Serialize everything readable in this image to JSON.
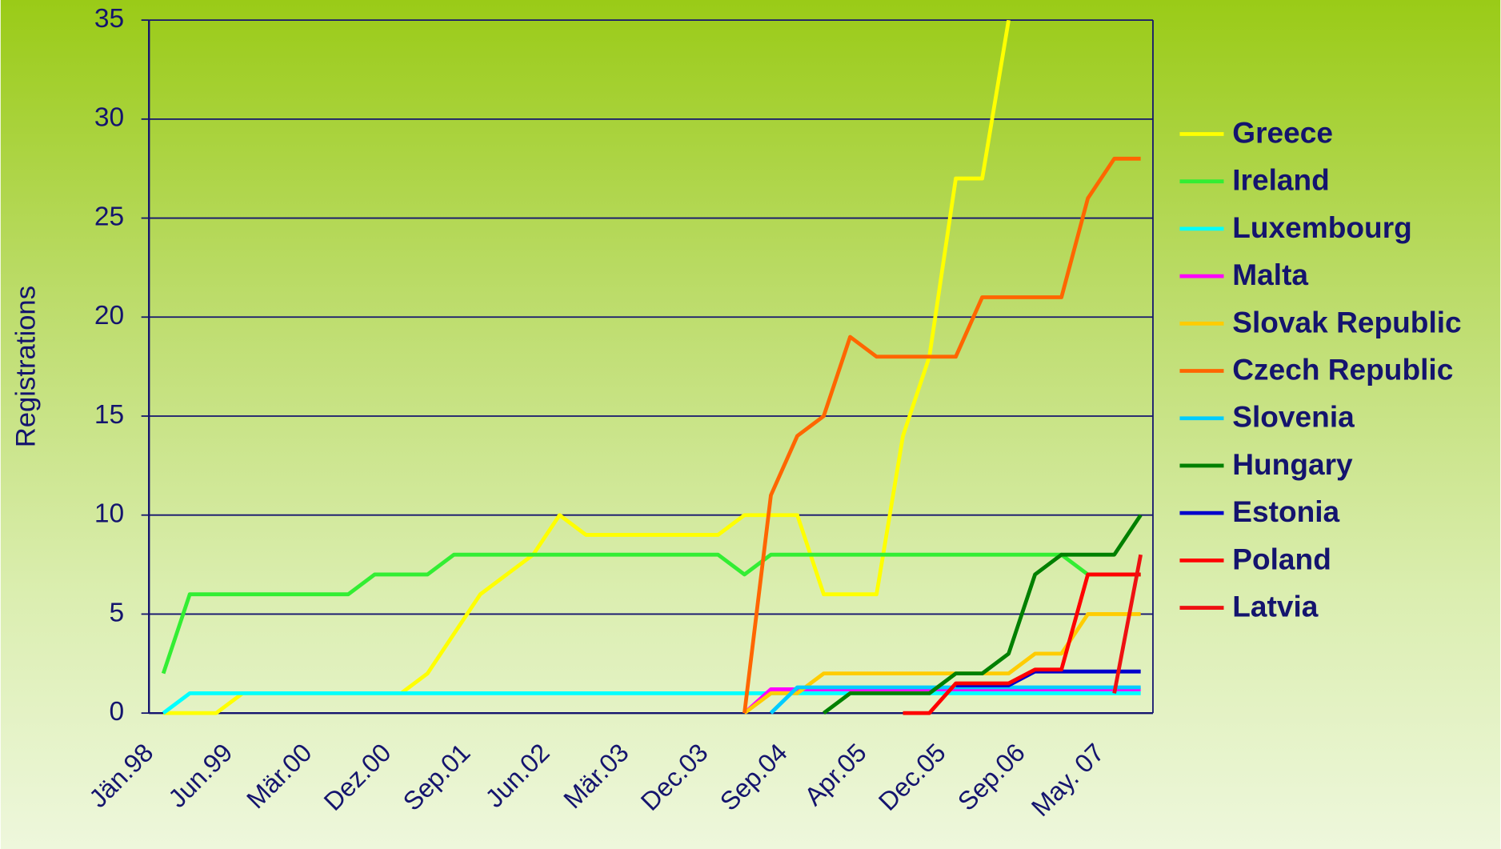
{
  "chart_data": {
    "type": "line",
    "y_label": "Registrations",
    "categories": [
      "Jän.98",
      null,
      null,
      "Jun.99",
      null,
      null,
      "Mär.00",
      null,
      null,
      "Dez.00",
      null,
      null,
      "Sep.01",
      null,
      null,
      "Jun.02",
      null,
      null,
      "Mär.03",
      null,
      null,
      "Dec.03",
      null,
      null,
      "Sep.04",
      null,
      null,
      "Apr.05",
      null,
      null,
      "Dec.05",
      null,
      null,
      "Sep.06",
      null,
      null,
      "May. 07",
      null
    ],
    "ylim": [
      0,
      35
    ],
    "yticks": [
      0,
      5,
      10,
      15,
      20,
      25,
      30,
      35
    ],
    "grid": true,
    "series": [
      {
        "name": "Greece",
        "color": "#ffff00",
        "values": [
          0,
          0,
          0,
          1,
          1,
          1,
          1,
          1,
          1,
          1,
          2,
          4,
          6,
          7,
          8,
          10,
          9,
          9,
          9,
          9,
          9,
          9,
          10,
          10,
          10,
          6,
          6,
          6,
          14,
          18,
          27,
          27,
          35,
          null,
          null,
          null,
          null,
          null
        ]
      },
      {
        "name": "Ireland",
        "color": "#33ee33",
        "values": [
          2,
          6,
          6,
          6,
          6,
          6,
          6,
          6,
          7,
          7,
          7,
          8,
          8,
          8,
          8,
          8,
          8,
          8,
          8,
          8,
          8,
          8,
          7,
          8,
          8,
          8,
          8,
          8,
          8,
          8,
          8,
          8,
          8,
          8,
          8,
          7,
          7,
          7
        ]
      },
      {
        "name": "Luxembourg",
        "color": "#00ffff",
        "values": [
          0,
          1,
          1,
          1,
          1,
          1,
          1,
          1,
          1,
          1,
          1,
          1,
          1,
          1,
          1,
          1,
          1,
          1,
          1,
          1,
          1,
          1,
          1,
          1,
          1,
          1,
          1,
          1,
          1,
          1,
          1,
          1,
          1,
          1,
          1,
          1,
          1,
          1
        ]
      },
      {
        "name": "Malta",
        "color": "#ff00ff",
        "values": [
          null,
          null,
          null,
          null,
          null,
          null,
          null,
          null,
          null,
          null,
          null,
          null,
          null,
          null,
          null,
          null,
          null,
          null,
          null,
          null,
          null,
          null,
          0,
          1.2,
          1.2,
          1.2,
          1.2,
          1.2,
          1.2,
          1.2,
          1.2,
          1.2,
          1.2,
          1.2,
          1.2,
          1.2,
          1.2,
          1.2
        ]
      },
      {
        "name": "Slovak Republic",
        "color": "#ffcc00",
        "values": [
          null,
          null,
          null,
          null,
          null,
          null,
          null,
          null,
          null,
          null,
          null,
          null,
          null,
          null,
          null,
          null,
          null,
          null,
          null,
          null,
          null,
          null,
          0,
          1,
          1,
          2,
          2,
          2,
          2,
          2,
          2,
          2,
          2,
          3,
          3,
          5,
          5,
          5
        ]
      },
      {
        "name": "Czech Republic",
        "color": "#ff6600",
        "values": [
          null,
          null,
          null,
          null,
          null,
          null,
          null,
          null,
          null,
          null,
          null,
          null,
          null,
          null,
          null,
          null,
          null,
          null,
          null,
          null,
          null,
          null,
          0,
          11,
          14,
          15,
          19,
          18,
          18,
          18,
          18,
          21,
          21,
          21,
          21,
          26,
          28,
          28
        ]
      },
      {
        "name": "Slovenia",
        "color": "#00ccff",
        "values": [
          null,
          null,
          null,
          null,
          null,
          null,
          null,
          null,
          null,
          null,
          null,
          null,
          null,
          null,
          null,
          null,
          null,
          null,
          null,
          null,
          null,
          null,
          null,
          0,
          1.3,
          1.3,
          1.3,
          1.3,
          1.3,
          1.3,
          1.3,
          1.3,
          1.3,
          1.3,
          1.3,
          1.3,
          1.3,
          1.3
        ]
      },
      {
        "name": "Hungary",
        "color": "#008000",
        "values": [
          null,
          null,
          null,
          null,
          null,
          null,
          null,
          null,
          null,
          null,
          null,
          null,
          null,
          null,
          null,
          null,
          null,
          null,
          null,
          null,
          null,
          null,
          null,
          null,
          null,
          0,
          1,
          1,
          1,
          1,
          2,
          2,
          3,
          7,
          8,
          8,
          8,
          10
        ]
      },
      {
        "name": "Estonia",
        "color": "#0000cc",
        "values": [
          null,
          null,
          null,
          null,
          null,
          null,
          null,
          null,
          null,
          null,
          null,
          null,
          null,
          null,
          null,
          null,
          null,
          null,
          null,
          null,
          null,
          null,
          null,
          null,
          null,
          null,
          null,
          null,
          null,
          null,
          1.4,
          1.4,
          1.4,
          2.1,
          2.1,
          2.1,
          2.1,
          2.1
        ]
      },
      {
        "name": "Poland",
        "color": "#ff0000",
        "values": [
          null,
          null,
          null,
          null,
          null,
          null,
          null,
          null,
          null,
          null,
          null,
          null,
          null,
          null,
          null,
          null,
          null,
          null,
          null,
          null,
          null,
          null,
          null,
          null,
          null,
          null,
          null,
          null,
          0,
          0,
          1.5,
          1.5,
          1.5,
          2.2,
          2.2,
          7,
          7,
          7
        ]
      },
      {
        "name": "Latvia",
        "color": "#ee1111",
        "values": [
          null,
          null,
          null,
          null,
          null,
          null,
          null,
          null,
          null,
          null,
          null,
          null,
          null,
          null,
          null,
          null,
          null,
          null,
          null,
          null,
          null,
          null,
          null,
          null,
          null,
          null,
          null,
          null,
          null,
          null,
          null,
          null,
          null,
          null,
          null,
          null,
          1,
          8
        ]
      }
    ]
  }
}
